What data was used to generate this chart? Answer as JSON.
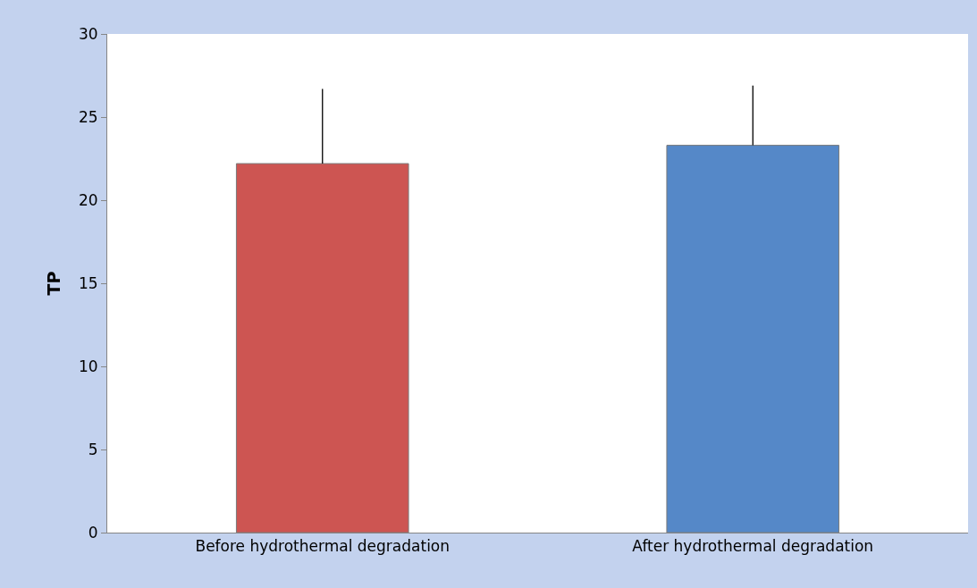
{
  "chart_data": {
    "type": "bar",
    "ylabel": "TP",
    "categories": [
      "Before hydrothermal degradation",
      "After hydrothermal degradation"
    ],
    "values": [
      22.2,
      23.3
    ],
    "colors": [
      "#cd5552",
      "#5588c8"
    ],
    "errors": [
      [
        22.2,
        26.7
      ],
      [
        23.3,
        26.9
      ]
    ],
    "ylim": [
      0,
      30
    ],
    "yticks": [
      0,
      5,
      10,
      15,
      20,
      25,
      30
    ]
  }
}
